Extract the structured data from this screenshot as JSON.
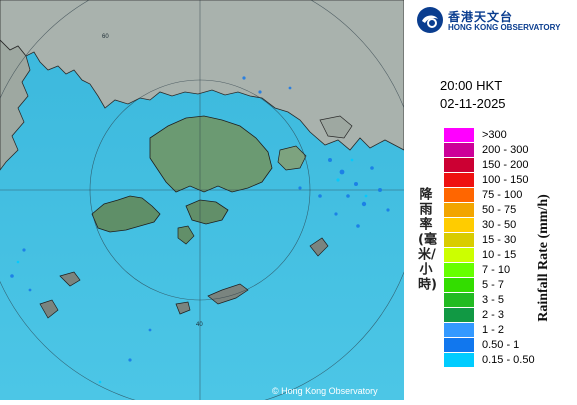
{
  "map": {
    "copyright": "© Hong Kong Observatory",
    "range_ring_labels": [
      "60",
      "40"
    ]
  },
  "header": {
    "logo_cn": "香港天文台",
    "logo_en": "HONG KONG OBSERVATORY",
    "logo_icon": "hko-logo-icon"
  },
  "timestamp": {
    "time": "20:00 HKT",
    "date": "02-11-2025"
  },
  "legend": {
    "title_cn": "降雨率(毫米/小時)",
    "title_en": "Rainfall Rate (mm/h)",
    "items": [
      {
        "label": ">300",
        "color": "#ff00ff"
      },
      {
        "label": "200 - 300",
        "color": "#cc0099"
      },
      {
        "label": "150 - 200",
        "color": "#cc0033"
      },
      {
        "label": "100 - 150",
        "color": "#ee1111"
      },
      {
        "label": "75 - 100",
        "color": "#ff6600"
      },
      {
        "label": "50 - 75",
        "color": "#f2a500"
      },
      {
        "label": "30 - 50",
        "color": "#ffcc00"
      },
      {
        "label": "15 - 30",
        "color": "#d9cc00"
      },
      {
        "label": "10 - 15",
        "color": "#ccff00"
      },
      {
        "label": "7 - 10",
        "color": "#66ff00"
      },
      {
        "label": "5 - 7",
        "color": "#33dd00"
      },
      {
        "label": "3 - 5",
        "color": "#22bb22"
      },
      {
        "label": "2 - 3",
        "color": "#119944"
      },
      {
        "label": "1 - 2",
        "color": "#3399ff"
      },
      {
        "label": "0.50 - 1",
        "color": "#1177ee"
      },
      {
        "label": "0.15 - 0.50",
        "color": "#00ccff"
      }
    ]
  }
}
